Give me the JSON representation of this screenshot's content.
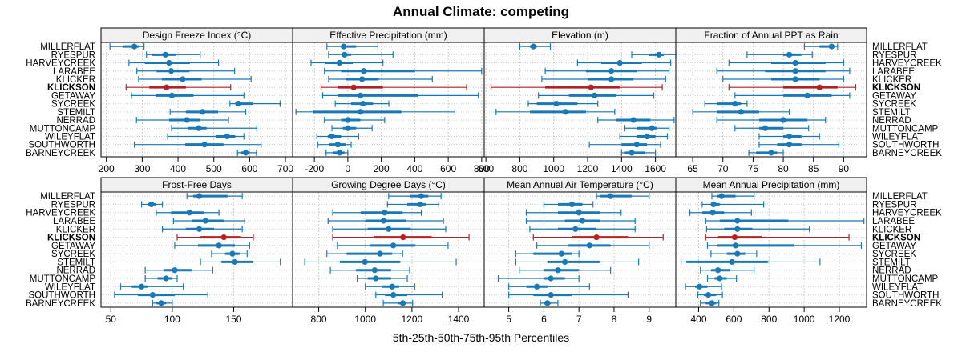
{
  "title": "Annual Climate: competing",
  "xlabel": "5th-25th-50th-75th-95th Percentiles",
  "colors": {
    "normal": "#1a78b6",
    "highlight": "#b22222",
    "strip_bg": "#f0f0f0",
    "grid": "#cccccc"
  },
  "chart_data": {
    "type": "dotplot-percentile-intervals",
    "title": "Annual Climate: competing",
    "xlabel": "5th-25th-50th-75th-95th Percentiles",
    "highlight_site": "KLICKSON",
    "sites": [
      "MILLERFLAT",
      "RYESPUR",
      "HARVEYCREEK",
      "LARABEE",
      "KLICKER",
      "KLICKSON",
      "GETAWAY",
      "SYCREEK",
      "STEMILT",
      "NERRAD",
      "MUTTONCAMP",
      "WILEYFLAT",
      "SOUTHWORTH",
      "BARNEYCREEK"
    ],
    "panels": [
      {
        "name": "Design Freeze Index (°C)",
        "xlim": [
          185,
          720
        ],
        "ticks": [
          200,
          300,
          400,
          500,
          600,
          700
        ],
        "values": [
          [
            210,
            245,
            278,
            290,
            305
          ],
          [
            312,
            327,
            365,
            395,
            462
          ],
          [
            263,
            307,
            375,
            433,
            513
          ],
          [
            285,
            340,
            381,
            432,
            558
          ],
          [
            290,
            355,
            413,
            466,
            604
          ],
          [
            255,
            320,
            368,
            422,
            547
          ],
          [
            270,
            338,
            383,
            443,
            584
          ],
          [
            545,
            560,
            569,
            610,
            685
          ],
          [
            378,
            422,
            468,
            512,
            589
          ],
          [
            284,
            375,
            425,
            462,
            541
          ],
          [
            382,
            427,
            458,
            480,
            620
          ],
          [
            371,
            505,
            537,
            560,
            584
          ],
          [
            278,
            420,
            474,
            527,
            632
          ],
          [
            566,
            576,
            589,
            600,
            619
          ]
        ]
      },
      {
        "name": "Effective Precipitation (mm)",
        "xlim": [
          -330,
          815
        ],
        "ticks": [
          -200,
          0,
          200,
          400,
          600,
          800
        ],
        "values": [
          [
            -125,
            -40,
            -25,
            50,
            180
          ],
          [
            -115,
            -35,
            -20,
            20,
            270
          ],
          [
            -220,
            -135,
            -50,
            30,
            210
          ],
          [
            -140,
            -40,
            95,
            400,
            800
          ],
          [
            -115,
            -10,
            85,
            185,
            505
          ],
          [
            -160,
            -60,
            35,
            210,
            710
          ],
          [
            -150,
            -60,
            75,
            420,
            780
          ],
          [
            -75,
            20,
            90,
            150,
            245
          ],
          [
            -310,
            -210,
            75,
            320,
            640
          ],
          [
            -140,
            -40,
            0,
            75,
            220
          ],
          [
            -95,
            -30,
            0,
            50,
            145
          ],
          [
            -185,
            -120,
            -95,
            -40,
            65
          ],
          [
            -180,
            -110,
            -60,
            -10,
            20
          ],
          [
            -130,
            -90,
            -50,
            -20,
            0
          ]
        ]
      },
      {
        "name": "Elevation (m)",
        "xlim": [
          590,
          1720
        ],
        "ticks": [
          600,
          800,
          1000,
          1200,
          1400,
          1600
        ],
        "values": [
          [
            800,
            860,
            880,
            900,
            980
          ],
          [
            1460,
            1560,
            1620,
            1650,
            1720
          ],
          [
            1140,
            1280,
            1390,
            1520,
            1690
          ],
          [
            950,
            1190,
            1340,
            1490,
            1680
          ],
          [
            930,
            1200,
            1340,
            1470,
            1660
          ],
          [
            630,
            950,
            1220,
            1390,
            1640
          ],
          [
            910,
            1090,
            1240,
            1370,
            1590
          ],
          [
            850,
            900,
            1015,
            1140,
            1260
          ],
          [
            660,
            860,
            1070,
            1190,
            1360
          ],
          [
            1260,
            1370,
            1470,
            1570,
            1710
          ],
          [
            1420,
            1490,
            1580,
            1610,
            1680
          ],
          [
            1390,
            1490,
            1550,
            1600,
            1670
          ],
          [
            1210,
            1400,
            1490,
            1550,
            1630
          ],
          [
            1400,
            1420,
            1460,
            1540,
            1600
          ]
        ]
      },
      {
        "name": "Fraction of Annual PPT as Rain",
        "xlim": [
          62.2,
          93.8
        ],
        "ticks": [
          65,
          70,
          75,
          80,
          85,
          90
        ],
        "values": [
          [
            83.5,
            86,
            88,
            88.5,
            89
          ],
          [
            74,
            80,
            81,
            83,
            84.8
          ],
          [
            71,
            78,
            82,
            87,
            90
          ],
          [
            69,
            77,
            82,
            87,
            91
          ],
          [
            70,
            78,
            82,
            86,
            90
          ],
          [
            71,
            80,
            86,
            89,
            92
          ],
          [
            72,
            80,
            84,
            88,
            91
          ],
          [
            67,
            69,
            72,
            73,
            74
          ],
          [
            65,
            69,
            73,
            76,
            81
          ],
          [
            69,
            76,
            80,
            84,
            87
          ],
          [
            72,
            76,
            77,
            80,
            84.2
          ],
          [
            76,
            80,
            81,
            83,
            86
          ],
          [
            76,
            79,
            81,
            83,
            89.2
          ],
          [
            74.3,
            75.5,
            78,
            79,
            80
          ]
        ]
      },
      {
        "name": "Frost-Free Days",
        "xlim": [
          42,
          198
        ],
        "ticks": [
          50,
          100,
          150
        ],
        "values": [
          [
            112,
            117,
            122,
            145,
            157
          ],
          [
            75,
            80,
            83,
            87,
            92
          ],
          [
            87,
            99,
            114,
            126,
            138
          ],
          [
            101,
            116,
            127,
            142,
            159
          ],
          [
            92,
            111,
            122,
            134,
            157
          ],
          [
            104,
            123,
            142,
            156,
            166
          ],
          [
            102,
            121,
            138,
            151,
            163
          ],
          [
            132,
            143,
            149,
            155,
            161
          ],
          [
            123,
            140,
            151,
            166,
            188
          ],
          [
            78,
            93,
            102,
            116,
            133
          ],
          [
            78,
            88,
            95,
            100,
            104
          ],
          [
            58,
            67,
            75,
            80,
            109
          ],
          [
            53,
            72,
            84,
            102,
            129
          ],
          [
            84,
            87,
            91,
            95,
            100
          ]
        ]
      },
      {
        "name": "Growing Degree Days (°C)",
        "xlim": [
          688,
          1510
        ],
        "ticks": [
          800,
          1000,
          1200,
          1400
        ],
        "values": [
          [
            1100,
            1190,
            1240,
            1270,
            1325
          ],
          [
            1095,
            1180,
            1235,
            1260,
            1315
          ],
          [
            860,
            980,
            1083,
            1160,
            1240
          ],
          [
            840,
            1000,
            1078,
            1175,
            1335
          ],
          [
            860,
            1010,
            1100,
            1195,
            1345
          ],
          [
            860,
            1035,
            1162,
            1285,
            1445
          ],
          [
            880,
            1020,
            1120,
            1215,
            1355
          ],
          [
            835,
            920,
            1063,
            1115,
            1160
          ],
          [
            740,
            890,
            998,
            1150,
            1390
          ],
          [
            850,
            960,
            1040,
            1110,
            1190
          ],
          [
            965,
            1010,
            1045,
            1110,
            1180
          ],
          [
            1000,
            1070,
            1115,
            1145,
            1212
          ],
          [
            1045,
            1085,
            1120,
            1180,
            1330
          ],
          [
            1077,
            1140,
            1161,
            1175,
            1203
          ]
        ]
      },
      {
        "name": "Mean Annual Air Temperature (°C)",
        "xlim": [
          4.3,
          9.76
        ],
        "ticks": [
          5,
          6,
          7,
          8,
          9
        ],
        "values": [
          [
            7.5,
            7.6,
            7.9,
            8.5,
            9.0
          ],
          [
            6.0,
            6.4,
            6.8,
            7.1,
            7.4
          ],
          [
            5.5,
            6.4,
            7.0,
            7.6,
            8.2
          ],
          [
            5.5,
            6.6,
            7.1,
            7.6,
            8.6
          ],
          [
            5.6,
            6.4,
            6.9,
            7.5,
            8.6
          ],
          [
            5.7,
            6.8,
            7.5,
            8.4,
            9.4
          ],
          [
            5.8,
            6.7,
            7.3,
            7.9,
            9.0
          ],
          [
            5.2,
            5.7,
            6.5,
            6.8,
            7.0
          ],
          [
            5.2,
            6.1,
            6.6,
            7.6,
            8.7
          ],
          [
            5.3,
            6.0,
            6.4,
            7.0,
            7.9
          ],
          [
            4.7,
            6.0,
            6.2,
            6.6,
            7.0
          ],
          [
            5.0,
            5.5,
            5.8,
            6.1,
            7.3
          ],
          [
            5.0,
            5.7,
            6.2,
            6.8,
            8.4
          ],
          [
            5.9,
            6.0,
            6.1,
            6.2,
            6.4
          ]
        ]
      },
      {
        "name": "Mean Annual Precipitation (mm)",
        "xlim": [
          270,
          1355
        ],
        "ticks": [
          400,
          600,
          800,
          1000,
          1200
        ],
        "values": [
          [
            475,
            505,
            530,
            610,
            715
          ],
          [
            420,
            470,
            485,
            520,
            770
          ],
          [
            350,
            420,
            480,
            545,
            700
          ],
          [
            440,
            520,
            620,
            910,
            1340
          ],
          [
            445,
            545,
            620,
            705,
            1030
          ],
          [
            440,
            510,
            605,
            760,
            1255
          ],
          [
            450,
            505,
            610,
            945,
            1325
          ],
          [
            470,
            560,
            620,
            665,
            730
          ],
          [
            300,
            330,
            590,
            795,
            1090
          ],
          [
            410,
            470,
            510,
            580,
            715
          ],
          [
            450,
            490,
            520,
            560,
            615
          ],
          [
            325,
            380,
            405,
            450,
            530
          ],
          [
            395,
            430,
            455,
            500,
            535
          ],
          [
            410,
            440,
            475,
            500,
            515
          ]
        ]
      }
    ]
  }
}
